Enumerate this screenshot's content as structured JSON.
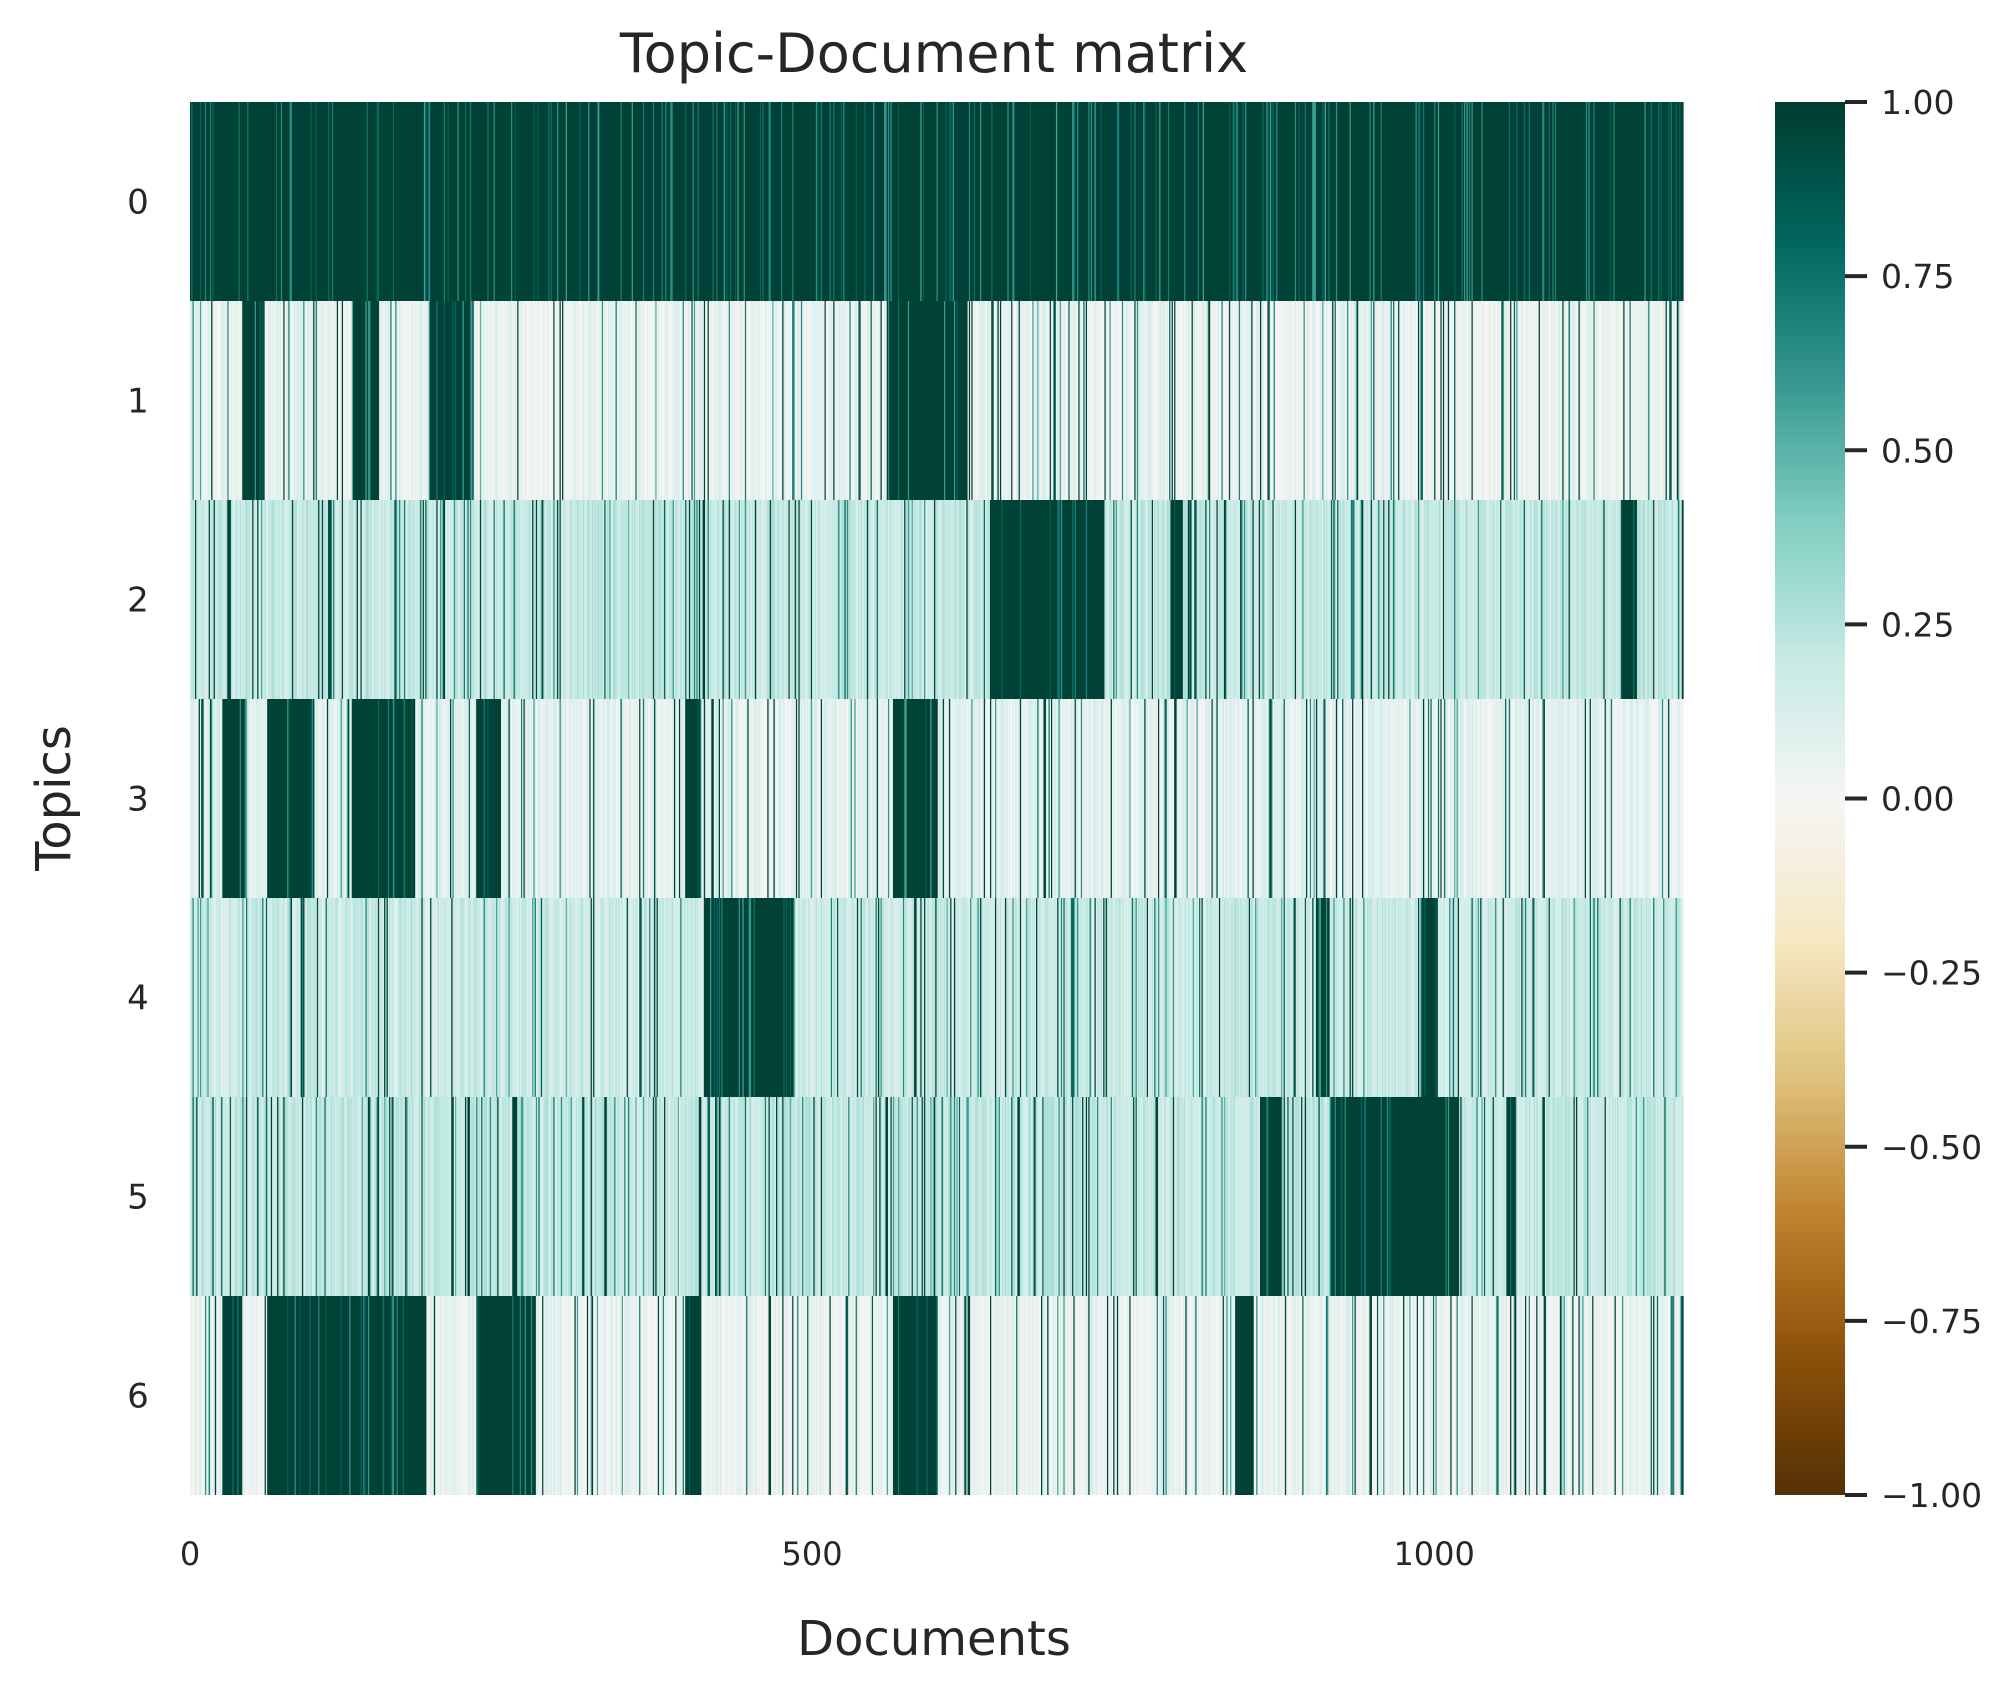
{
  "chart_data": {
    "type": "heatmap",
    "title": "Topic-Document matrix",
    "xlabel": "Documents",
    "ylabel": "Topics",
    "n_documents": 1200,
    "rows": [
      "0",
      "1",
      "2",
      "3",
      "4",
      "5",
      "6"
    ],
    "x_ticks": [
      "0",
      "500",
      "1000"
    ],
    "x_tick_values": [
      0,
      500,
      1000
    ],
    "xlim": [
      0,
      1200
    ],
    "colorbar": {
      "ticks": [
        "1.00",
        "0.75",
        "0.50",
        "0.25",
        "0.00",
        "−0.25",
        "−0.50",
        "−0.75",
        "−1.00"
      ],
      "tick_values": [
        1.0,
        0.75,
        0.5,
        0.25,
        0.0,
        -0.25,
        -0.5,
        -0.75,
        -1.0
      ],
      "vmin": -1.0,
      "vmax": 1.0,
      "colormap": "BrBG",
      "colors": [
        "#543005",
        "#8c510a",
        "#bf812d",
        "#dfc27d",
        "#f6e8c3",
        "#f5f5f5",
        "#c7eae5",
        "#80cdc1",
        "#35978f",
        "#01665e",
        "#003c30"
      ]
    },
    "rows_summary": [
      {
        "topic": "0",
        "baseline": 0.98,
        "high_ranges": [
          [
            0,
            1200
          ]
        ]
      },
      {
        "topic": "1",
        "baseline": 0.05,
        "high_ranges": [
          [
            42,
            60
          ],
          [
            132,
            152
          ],
          [
            192,
            228
          ],
          [
            560,
            625
          ]
        ]
      },
      {
        "topic": "2",
        "baseline": 0.2,
        "high_ranges": [
          [
            643,
            735
          ],
          [
            788,
            798
          ],
          [
            1150,
            1163
          ]
        ]
      },
      {
        "topic": "3",
        "baseline": 0.08,
        "high_ranges": [
          [
            26,
            44
          ],
          [
            62,
            100
          ],
          [
            130,
            180
          ],
          [
            230,
            250
          ],
          [
            398,
            410
          ],
          [
            565,
            600
          ]
        ]
      },
      {
        "topic": "4",
        "baseline": 0.18,
        "high_ranges": [
          [
            414,
            486
          ],
          [
            905,
            915
          ],
          [
            990,
            1003
          ]
        ]
      },
      {
        "topic": "5",
        "baseline": 0.2,
        "high_ranges": [
          [
            860,
            878
          ],
          [
            918,
            1020
          ],
          [
            1058,
            1066
          ]
        ]
      },
      {
        "topic": "6",
        "baseline": 0.05,
        "high_ranges": [
          [
            26,
            42
          ],
          [
            62,
            190
          ],
          [
            230,
            278
          ],
          [
            398,
            410
          ],
          [
            565,
            600
          ],
          [
            840,
            855
          ]
        ]
      }
    ]
  }
}
